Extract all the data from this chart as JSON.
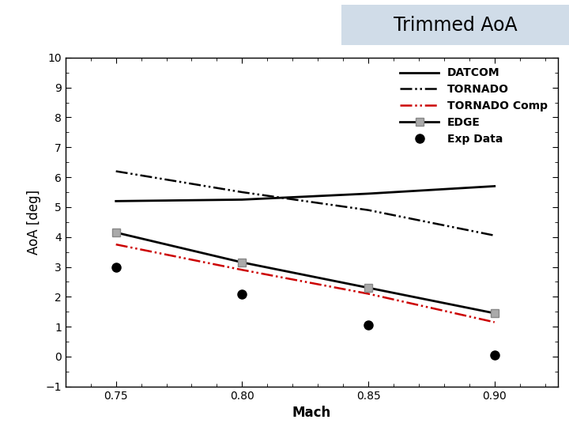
{
  "title": "Trimmed AoA",
  "xlabel": "Mach",
  "ylabel": "AoA [deg]",
  "xlim": [
    0.73,
    0.925
  ],
  "ylim": [
    -1,
    10
  ],
  "yticks": [
    -1,
    0,
    1,
    2,
    3,
    4,
    5,
    6,
    7,
    8,
    9,
    10
  ],
  "xticks": [
    0.75,
    0.8,
    0.85,
    0.9
  ],
  "mach": [
    0.75,
    0.8,
    0.85,
    0.9
  ],
  "datcom": [
    5.2,
    5.25,
    5.45,
    5.7
  ],
  "tornado": [
    6.2,
    5.5,
    4.9,
    4.05
  ],
  "tornado_comp": [
    3.75,
    2.9,
    2.1,
    1.15
  ],
  "edge": [
    4.15,
    3.15,
    2.3,
    1.45
  ],
  "exp_data_x": [
    0.75,
    0.8,
    0.85,
    0.9
  ],
  "exp_data_y": [
    3.0,
    2.1,
    1.05,
    0.05
  ],
  "datcom_color": "#000000",
  "tornado_color": "#000000",
  "tornado_comp_color": "#cc0000",
  "edge_color": "#000000",
  "exp_color": "#000000",
  "edge_marker_color": "#aaaaaa",
  "title_bg_color": "#d0dce8",
  "title_fontsize": 17,
  "axis_label_fontsize": 12,
  "tick_fontsize": 10,
  "legend_fontsize": 10,
  "background_color": "#ffffff"
}
